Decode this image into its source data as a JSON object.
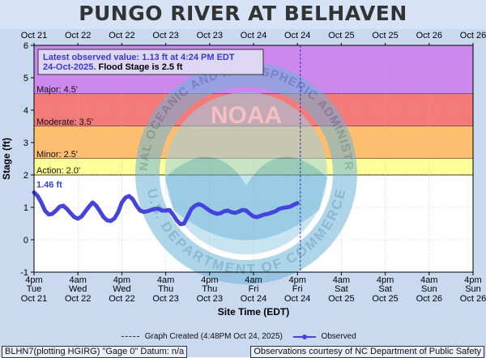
{
  "title": "PUNGO RIVER AT BELHAVEN",
  "chart_data": {
    "type": "line",
    "ylabel": "Stage (ft)",
    "xlabel": "Site Time (EDT)",
    "ylim": [
      -1,
      6
    ],
    "y_ticks": [
      "-1",
      "0",
      "1",
      "2",
      "3",
      "4",
      "5",
      "6"
    ],
    "top_ticks": [
      "Oct 21",
      "Oct 22",
      "Oct 22",
      "Oct 23",
      "Oct 23",
      "Oct 24",
      "Oct 24",
      "Oct 25",
      "Oct 25",
      "Oct 26",
      "Oct 26"
    ],
    "bottom_ticks": [
      {
        "time": "4pm",
        "day": "Tue",
        "date": "Oct 21"
      },
      {
        "time": "4am",
        "day": "Wed",
        "date": "Oct 22"
      },
      {
        "time": "4pm",
        "day": "Wed",
        "date": "Oct 22"
      },
      {
        "time": "4am",
        "day": "Thu",
        "date": "Oct 23"
      },
      {
        "time": "4pm",
        "day": "Thu",
        "date": "Oct 23"
      },
      {
        "time": "4am",
        "day": "Fri",
        "date": "Oct 24"
      },
      {
        "time": "4pm",
        "day": "Fri",
        "date": "Oct 24"
      },
      {
        "time": "4am",
        "day": "Sat",
        "date": "Oct 25"
      },
      {
        "time": "4pm",
        "day": "Sat",
        "date": "Oct 25"
      },
      {
        "time": "4am",
        "day": "Sun",
        "date": "Oct 26"
      },
      {
        "time": "4pm",
        "day": "Sun",
        "date": "Oct 26"
      }
    ],
    "flood_bands": [
      {
        "label": "Major: 4.5'",
        "from": 4.5,
        "to": 6,
        "color": "#cc88ee"
      },
      {
        "label": "Moderate: 3.5'",
        "from": 3.5,
        "to": 4.5,
        "color": "#f47a7a"
      },
      {
        "label": "Minor: 2.5'",
        "from": 2.5,
        "to": 3.5,
        "color": "#fdbf6f"
      },
      {
        "label": "Action: 2.0'",
        "from": 2.0,
        "to": 2.5,
        "color": "#ffff9a"
      }
    ],
    "info_line1": "Latest observed value: 1.13 ft at 4:24 PM EDT",
    "info_line2a": "24-Oct-2025.",
    "info_line2b": "Flood Stage is 2.5 ft",
    "max_label": "1.46 ft",
    "graph_created": "Graph Created (4:48PM Oct 24, 2025)",
    "series": [
      {
        "name": "Observed",
        "color": "#4444dd",
        "x_hours": [
          0,
          1,
          2,
          3,
          4,
          5,
          6,
          7,
          8,
          9,
          10,
          11,
          12,
          13,
          14,
          15,
          16,
          17,
          18,
          19,
          20,
          21,
          22,
          23,
          24,
          25,
          26,
          27,
          28,
          29,
          30,
          31,
          32,
          33,
          34,
          35,
          36,
          37,
          38,
          39,
          40,
          41,
          42,
          43,
          44,
          45,
          46,
          47,
          48,
          49,
          50,
          51,
          52,
          53,
          54,
          55,
          56,
          57,
          58,
          59,
          60,
          61,
          62,
          63,
          64,
          65,
          66,
          67,
          68,
          69,
          70,
          71,
          72
        ],
        "values": [
          1.46,
          1.35,
          1.15,
          0.9,
          0.78,
          0.8,
          0.9,
          1.02,
          1.05,
          0.95,
          0.82,
          0.7,
          0.65,
          0.72,
          0.87,
          1.02,
          1.15,
          1.05,
          0.88,
          0.7,
          0.6,
          0.58,
          0.66,
          0.85,
          1.15,
          1.3,
          1.35,
          1.25,
          1.05,
          0.9,
          0.86,
          0.88,
          0.92,
          0.95,
          0.96,
          0.9,
          0.9,
          0.92,
          0.78,
          0.6,
          0.48,
          0.5,
          0.72,
          0.95,
          1.05,
          1.1,
          1.06,
          0.98,
          0.9,
          0.84,
          0.8,
          0.82,
          0.88,
          0.9,
          0.85,
          0.83,
          0.87,
          0.92,
          0.9,
          0.8,
          0.72,
          0.7,
          0.74,
          0.78,
          0.8,
          0.84,
          0.88,
          0.95,
          0.98,
          1.0,
          1.02,
          1.08,
          1.13
        ]
      }
    ],
    "xlim_hours": [
      0,
      120
    ],
    "graph_created_hours": 72.8
  },
  "footer": {
    "left": "BLHN7(plotting HGIRG) \"Gage 0\" Datum: n/a",
    "right": "Observations courtesy of NC Department of Public Safety"
  },
  "legend": {
    "created_label": "Graph Created (4:48PM Oct 24, 2025)",
    "observed_label": "Observed"
  },
  "watermark": {
    "arc_text": "NATIONAL OCEANIC AND ATMOSPHERIC ADMINISTRATION",
    "bottom_text": "U.S. DEPARTMENT OF COMMERCE",
    "center_text": "NOAA"
  }
}
